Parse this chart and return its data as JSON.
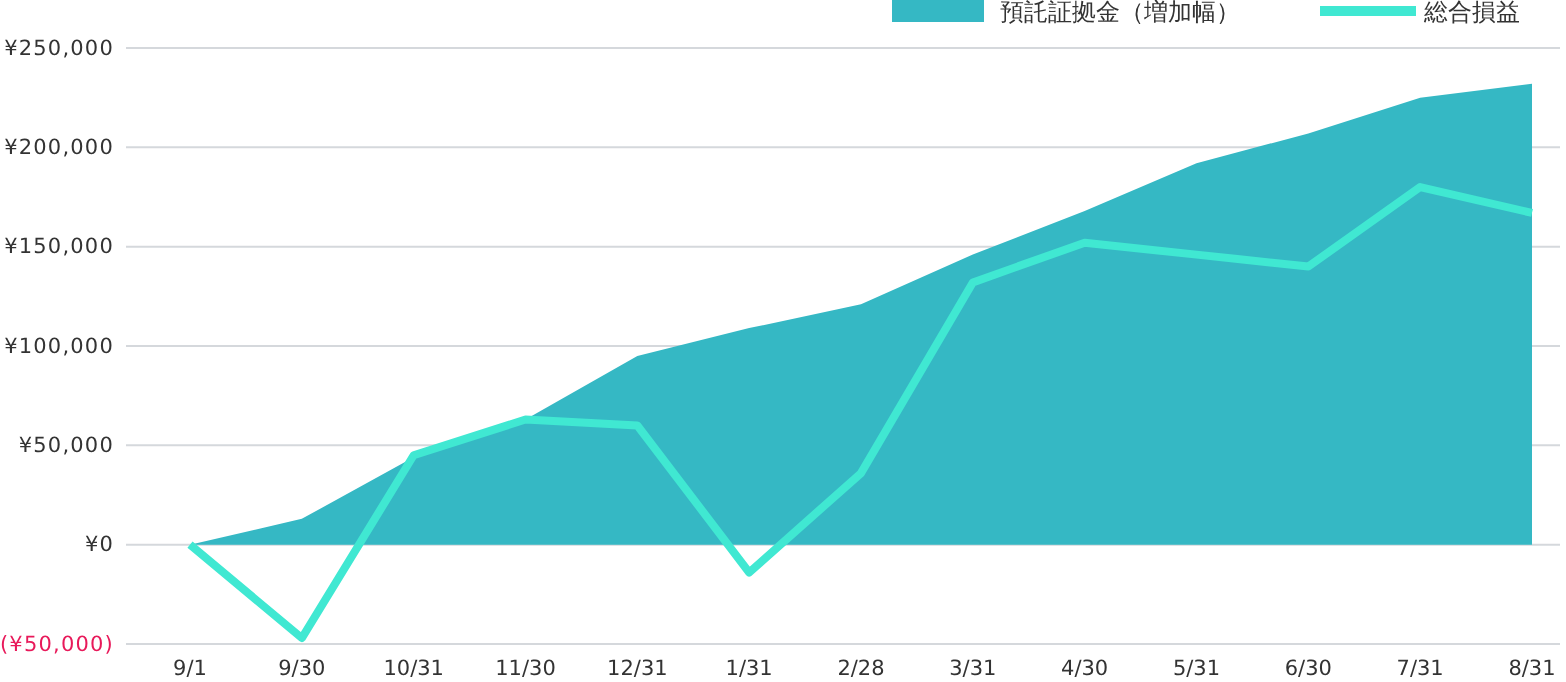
{
  "chart_data": {
    "type": "area",
    "categories": [
      "9/1",
      "9/30",
      "10/31",
      "11/30",
      "12/31",
      "1/31",
      "2/28",
      "3/31",
      "4/30",
      "5/31",
      "6/30",
      "7/31",
      "8/31"
    ],
    "series": [
      {
        "name": "預託証拠金（増加幅）",
        "color": "#35b8c4",
        "values": [
          0,
          13000,
          44000,
          63000,
          95000,
          109000,
          121000,
          146000,
          168000,
          192000,
          207000,
          225000,
          232000
        ]
      },
      {
        "name": "総合損益",
        "type": "line",
        "color": "#40e8d2",
        "values": [
          0,
          -47000,
          45000,
          63000,
          60000,
          -14000,
          36000,
          132000,
          152000,
          146000,
          140000,
          180000,
          167000
        ]
      }
    ],
    "ylim": [
      -50000,
      250000
    ],
    "yticks": [
      {
        "value": -50000,
        "label": "(¥50,000)"
      },
      {
        "value": 0,
        "label": "¥0"
      },
      {
        "value": 50000,
        "label": "¥50,000"
      },
      {
        "value": 100000,
        "label": "¥100,000"
      },
      {
        "value": 150000,
        "label": "¥150,000"
      },
      {
        "value": 200000,
        "label": "¥200,000"
      },
      {
        "value": 250000,
        "label": "¥250,000"
      }
    ],
    "grid": "y",
    "legend": "top right",
    "line_style": "solid",
    "marker": "none"
  }
}
